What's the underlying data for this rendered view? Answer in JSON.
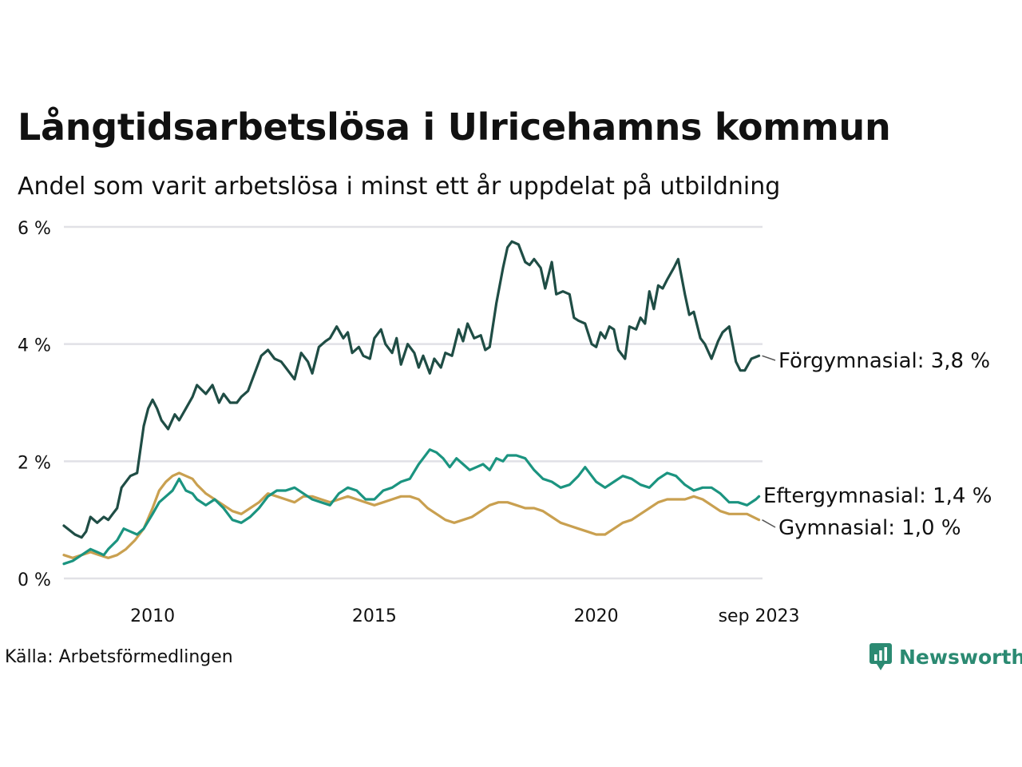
{
  "chart_data": {
    "type": "line",
    "title": "Långtidsarbetslösa i Ulricehamns kommun",
    "subtitle": "Andel som varit arbetslösa i minst ett år uppdelat på utbildning",
    "ylim": [
      0,
      6
    ],
    "yticks": [
      0,
      2,
      4,
      6
    ],
    "ytick_labels": [
      "0 %",
      "2 %",
      "4 %",
      "6 %"
    ],
    "xlim": [
      2008.0,
      2023.75
    ],
    "xticks": [
      2010,
      2015,
      2020,
      2023.67
    ],
    "xtick_labels": [
      "2010",
      "2015",
      "2020",
      "sep 2023"
    ],
    "grid": true,
    "series": [
      {
        "name": "Förgymnasial",
        "label": "Förgymnasial: 3,8 %",
        "color": "#1f4d45",
        "x": [
          2008.0,
          2008.25,
          2008.4,
          2008.5,
          2008.6,
          2008.75,
          2008.9,
          2009.0,
          2009.1,
          2009.2,
          2009.3,
          2009.5,
          2009.65,
          2009.8,
          2009.9,
          2010.0,
          2010.1,
          2010.2,
          2010.35,
          2010.5,
          2010.6,
          2010.75,
          2010.9,
          2011.0,
          2011.2,
          2011.35,
          2011.5,
          2011.6,
          2011.75,
          2011.9,
          2012.0,
          2012.15,
          2012.3,
          2012.45,
          2012.6,
          2012.75,
          2012.9,
          2013.0,
          2013.2,
          2013.35,
          2013.5,
          2013.6,
          2013.75,
          2013.9,
          2014.0,
          2014.15,
          2014.3,
          2014.4,
          2014.5,
          2014.65,
          2014.75,
          2014.9,
          2015.0,
          2015.15,
          2015.25,
          2015.4,
          2015.5,
          2015.6,
          2015.75,
          2015.9,
          2016.0,
          2016.1,
          2016.25,
          2016.35,
          2016.5,
          2016.6,
          2016.75,
          2016.9,
          2017.0,
          2017.1,
          2017.25,
          2017.4,
          2017.5,
          2017.6,
          2017.75,
          2017.9,
          2018.0,
          2018.1,
          2018.25,
          2018.4,
          2018.5,
          2018.6,
          2018.75,
          2018.85,
          2019.0,
          2019.1,
          2019.25,
          2019.4,
          2019.5,
          2019.6,
          2019.75,
          2019.9,
          2020.0,
          2020.1,
          2020.2,
          2020.3,
          2020.4,
          2020.5,
          2020.65,
          2020.75,
          2020.9,
          2021.0,
          2021.1,
          2021.2,
          2021.3,
          2021.4,
          2021.5,
          2021.6,
          2021.75,
          2021.85,
          2022.0,
          2022.1,
          2022.2,
          2022.35,
          2022.45,
          2022.6,
          2022.75,
          2022.85,
          2023.0,
          2023.15,
          2023.25,
          2023.35,
          2023.5,
          2023.67
        ],
        "values": [
          0.9,
          0.75,
          0.7,
          0.8,
          1.05,
          0.95,
          1.05,
          1.0,
          1.1,
          1.2,
          1.55,
          1.75,
          1.8,
          2.6,
          2.9,
          3.05,
          2.9,
          2.7,
          2.55,
          2.8,
          2.7,
          2.9,
          3.1,
          3.3,
          3.15,
          3.3,
          3.0,
          3.15,
          3.0,
          3.0,
          3.1,
          3.2,
          3.5,
          3.8,
          3.9,
          3.75,
          3.7,
          3.6,
          3.4,
          3.85,
          3.7,
          3.5,
          3.95,
          4.05,
          4.1,
          4.3,
          4.1,
          4.2,
          3.85,
          3.95,
          3.8,
          3.75,
          4.1,
          4.25,
          4.0,
          3.85,
          4.1,
          3.65,
          4.0,
          3.85,
          3.6,
          3.8,
          3.5,
          3.75,
          3.6,
          3.85,
          3.8,
          4.25,
          4.05,
          4.35,
          4.1,
          4.15,
          3.9,
          3.95,
          4.7,
          5.3,
          5.65,
          5.75,
          5.7,
          5.4,
          5.35,
          5.45,
          5.3,
          4.95,
          5.4,
          4.85,
          4.9,
          4.85,
          4.45,
          4.4,
          4.35,
          4.0,
          3.95,
          4.2,
          4.1,
          4.3,
          4.25,
          3.9,
          3.75,
          4.3,
          4.25,
          4.45,
          4.35,
          4.9,
          4.6,
          5.0,
          4.95,
          5.1,
          5.3,
          5.45,
          4.85,
          4.5,
          4.55,
          4.1,
          4.0,
          3.75,
          4.05,
          4.2,
          4.3,
          3.7,
          3.55,
          3.55,
          3.75,
          3.8
        ]
      },
      {
        "name": "Eftergymnasial",
        "label": "Eftergymnasial: 1,4 %",
        "color": "#1b9480",
        "x": [
          2008.0,
          2008.2,
          2008.4,
          2008.6,
          2008.75,
          2008.9,
          2009.0,
          2009.2,
          2009.35,
          2009.5,
          2009.65,
          2009.8,
          2010.0,
          2010.15,
          2010.3,
          2010.45,
          2010.6,
          2010.75,
          2010.9,
          2011.0,
          2011.2,
          2011.4,
          2011.6,
          2011.8,
          2012.0,
          2012.2,
          2012.4,
          2012.6,
          2012.8,
          2013.0,
          2013.2,
          2013.4,
          2013.6,
          2013.8,
          2014.0,
          2014.2,
          2014.4,
          2014.6,
          2014.8,
          2015.0,
          2015.2,
          2015.4,
          2015.6,
          2015.8,
          2016.0,
          2016.1,
          2016.25,
          2016.4,
          2016.55,
          2016.7,
          2016.85,
          2017.0,
          2017.15,
          2017.3,
          2017.45,
          2017.6,
          2017.75,
          2017.9,
          2018.0,
          2018.2,
          2018.4,
          2018.6,
          2018.8,
          2019.0,
          2019.2,
          2019.4,
          2019.6,
          2019.75,
          2019.9,
          2020.0,
          2020.2,
          2020.4,
          2020.6,
          2020.8,
          2021.0,
          2021.2,
          2021.4,
          2021.6,
          2021.8,
          2022.0,
          2022.2,
          2022.4,
          2022.6,
          2022.8,
          2023.0,
          2023.2,
          2023.4,
          2023.6,
          2023.67
        ],
        "values": [
          0.25,
          0.3,
          0.4,
          0.5,
          0.45,
          0.4,
          0.5,
          0.65,
          0.85,
          0.8,
          0.75,
          0.85,
          1.1,
          1.3,
          1.4,
          1.5,
          1.7,
          1.5,
          1.45,
          1.35,
          1.25,
          1.35,
          1.2,
          1.0,
          0.95,
          1.05,
          1.2,
          1.4,
          1.5,
          1.5,
          1.55,
          1.45,
          1.35,
          1.3,
          1.25,
          1.45,
          1.55,
          1.5,
          1.35,
          1.35,
          1.5,
          1.55,
          1.65,
          1.7,
          1.95,
          2.05,
          2.2,
          2.15,
          2.05,
          1.9,
          2.05,
          1.95,
          1.85,
          1.9,
          1.95,
          1.85,
          2.05,
          2.0,
          2.1,
          2.1,
          2.05,
          1.85,
          1.7,
          1.65,
          1.55,
          1.6,
          1.75,
          1.9,
          1.75,
          1.65,
          1.55,
          1.65,
          1.75,
          1.7,
          1.6,
          1.55,
          1.7,
          1.8,
          1.75,
          1.6,
          1.5,
          1.55,
          1.55,
          1.45,
          1.3,
          1.3,
          1.25,
          1.35,
          1.4
        ]
      },
      {
        "name": "Gymnasial",
        "label": "Gymnasial: 1,0 %",
        "color": "#c9a050",
        "x": [
          2008.0,
          2008.2,
          2008.4,
          2008.6,
          2008.8,
          2009.0,
          2009.2,
          2009.4,
          2009.6,
          2009.8,
          2010.0,
          2010.15,
          2010.3,
          2010.45,
          2010.6,
          2010.75,
          2010.9,
          2011.0,
          2011.2,
          2011.4,
          2011.6,
          2011.8,
          2012.0,
          2012.2,
          2012.4,
          2012.6,
          2012.8,
          2013.0,
          2013.2,
          2013.4,
          2013.6,
          2013.8,
          2014.0,
          2014.2,
          2014.4,
          2014.6,
          2014.8,
          2015.0,
          2015.2,
          2015.4,
          2015.6,
          2015.8,
          2016.0,
          2016.2,
          2016.4,
          2016.6,
          2016.8,
          2017.0,
          2017.2,
          2017.4,
          2017.6,
          2017.8,
          2018.0,
          2018.2,
          2018.4,
          2018.6,
          2018.8,
          2019.0,
          2019.2,
          2019.4,
          2019.6,
          2019.8,
          2020.0,
          2020.2,
          2020.4,
          2020.6,
          2020.8,
          2021.0,
          2021.2,
          2021.4,
          2021.6,
          2021.8,
          2022.0,
          2022.2,
          2022.4,
          2022.6,
          2022.8,
          2023.0,
          2023.2,
          2023.4,
          2023.67
        ],
        "values": [
          0.4,
          0.35,
          0.4,
          0.45,
          0.4,
          0.35,
          0.4,
          0.5,
          0.65,
          0.85,
          1.2,
          1.5,
          1.65,
          1.75,
          1.8,
          1.75,
          1.7,
          1.6,
          1.45,
          1.35,
          1.25,
          1.15,
          1.1,
          1.2,
          1.3,
          1.45,
          1.4,
          1.35,
          1.3,
          1.4,
          1.4,
          1.35,
          1.3,
          1.35,
          1.4,
          1.35,
          1.3,
          1.25,
          1.3,
          1.35,
          1.4,
          1.4,
          1.35,
          1.2,
          1.1,
          1.0,
          0.95,
          1.0,
          1.05,
          1.15,
          1.25,
          1.3,
          1.3,
          1.25,
          1.2,
          1.2,
          1.15,
          1.05,
          0.95,
          0.9,
          0.85,
          0.8,
          0.75,
          0.75,
          0.85,
          0.95,
          1.0,
          1.1,
          1.2,
          1.3,
          1.35,
          1.35,
          1.35,
          1.4,
          1.35,
          1.25,
          1.15,
          1.1,
          1.1,
          1.1,
          1.0
        ]
      }
    ],
    "source": "Källa: Arbetsförmedlingen",
    "brand": "Newsworthy"
  }
}
